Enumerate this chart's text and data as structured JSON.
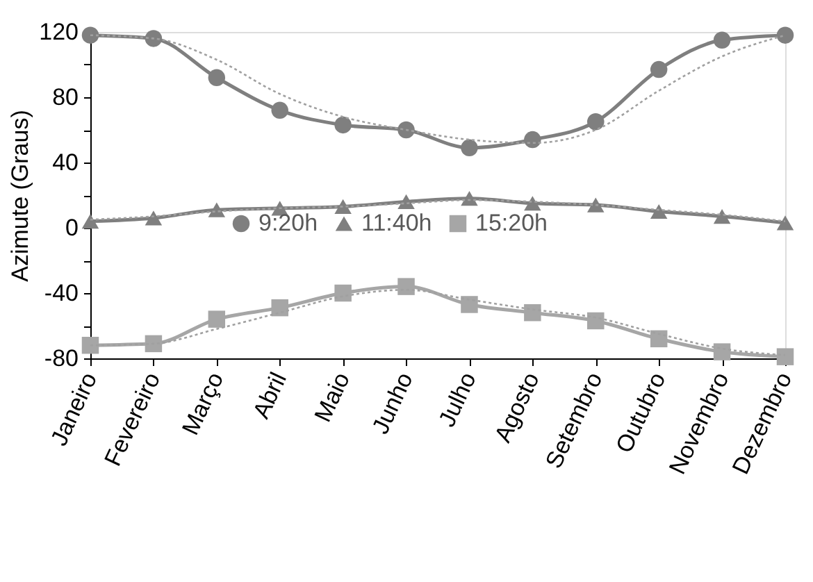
{
  "chart_data": {
    "type": "line",
    "ylabel": "Azimute (Graus)",
    "categories": [
      "Janeiro",
      "Fevereiro",
      "Março",
      "Abril",
      "Maio",
      "Junho",
      "Julho",
      "Agosto",
      "Setembro",
      "Outubro",
      "Novembro",
      "Dezembro"
    ],
    "series": [
      {
        "name": "9:20h",
        "color": "#7f7f7f",
        "marker": "circle",
        "line_style": "solid",
        "values": [
          118,
          116,
          92,
          72,
          63,
          60,
          49,
          54,
          65,
          97,
          115,
          118
        ]
      },
      {
        "name": "11:40h",
        "color": "#7f7f7f",
        "marker": "triangle",
        "line_style": "solid",
        "values": [
          4,
          6,
          11,
          12,
          13,
          16,
          18,
          15,
          14,
          10,
          7,
          3
        ]
      },
      {
        "name": "15:20h",
        "color": "#a6a6a6",
        "marker": "square",
        "line_style": "solid",
        "values": [
          -72,
          -71,
          -56,
          -49,
          -40,
          -36,
          -47,
          -52,
          -57,
          -68,
          -76,
          -79
        ]
      },
      {
        "color": "#a0a0a0",
        "marker": "none",
        "line_style": "dotted",
        "values": [
          118,
          116,
          103,
          82,
          68,
          60,
          54,
          52,
          60,
          84,
          105,
          118
        ]
      },
      {
        "color": "#a0a0a0",
        "marker": "none",
        "line_style": "dotted",
        "values": [
          5,
          7,
          10,
          12,
          13,
          15,
          17,
          16,
          14,
          11,
          8,
          4
        ]
      },
      {
        "color": "#a0a0a0",
        "marker": "none",
        "line_style": "dotted",
        "values": [
          -72,
          -71,
          -62,
          -52,
          -42,
          -38,
          -44,
          -50,
          -55,
          -65,
          -74,
          -78
        ]
      }
    ],
    "ylim": [
      -80,
      120
    ],
    "yticks": [
      -80,
      {
        "value": -60,
        "label": null
      },
      -40,
      {
        "value": -20,
        "label": null
      },
      0,
      {
        "value": 20,
        "label": null
      },
      40,
      {
        "value": 60,
        "label": null
      },
      80,
      {
        "value": 100,
        "label": null
      },
      120
    ],
    "grid": false,
    "legend": "center"
  }
}
